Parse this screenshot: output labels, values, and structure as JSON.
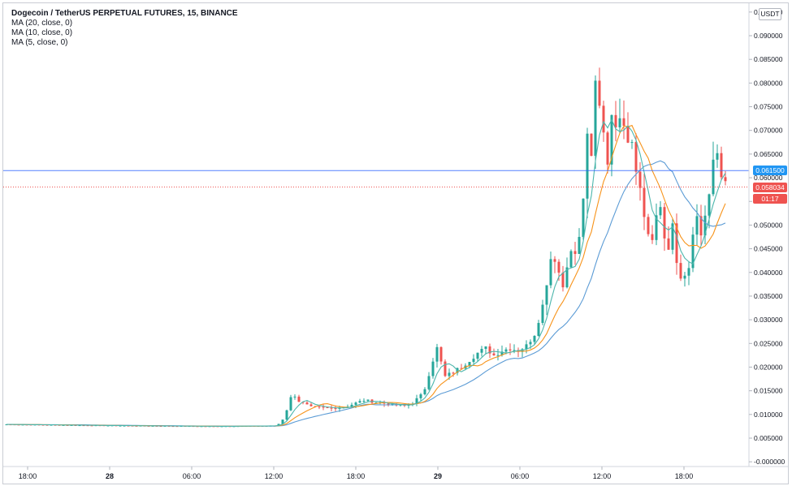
{
  "legend": {
    "title": "Dogecoin / TetherUS PERPETUAL FUTURES, 15, BINANCE",
    "studies": [
      "MA (20, close, 0)",
      "MA (10, close, 0)",
      "MA (5, close, 0)"
    ]
  },
  "currency_badge": "USDT",
  "price_tags": {
    "last_price": "0.061500",
    "mark_price": "0.058034",
    "countdown": "01:17"
  },
  "colors": {
    "up": "#26a69a",
    "down": "#ef5350",
    "ma20": "#5b9bd5",
    "ma10": "#f7931a",
    "ma5": "#4db6ac",
    "last_price_line": "#2962ff",
    "mark_price_line": "#ef5350"
  },
  "chart_data": {
    "type": "candlestick",
    "symbol": "Dogecoin / TetherUS PERPETUAL FUTURES",
    "interval": "15",
    "exchange": "BINANCE",
    "y_axis": {
      "range": [
        -0.001,
        0.096
      ],
      "ticks": [
        "0.095000",
        "0.090000",
        "0.085000",
        "0.080000",
        "0.075000",
        "0.070000",
        "0.065000",
        "0.060000",
        "0.055000",
        "0.050000",
        "0.045000",
        "0.040000",
        "0.035000",
        "0.030000",
        "0.025000",
        "0.020000",
        "0.015000",
        "0.010000",
        "0.005000",
        "-0.000000"
      ],
      "tick_values": [
        0.095,
        0.09,
        0.085,
        0.08,
        0.075,
        0.07,
        0.065,
        0.06,
        0.055,
        0.05,
        0.045,
        0.04,
        0.035,
        0.03,
        0.025,
        0.02,
        0.015,
        0.01,
        0.005,
        0.0
      ]
    },
    "x_axis": {
      "ticks": [
        "18:00",
        "28",
        "06:00",
        "12:00",
        "18:00",
        "29",
        "06:00",
        "12:00",
        "18:00"
      ],
      "bold_ticks": [
        "28",
        "29"
      ]
    },
    "anchors": [
      [
        0,
        0.0079
      ],
      [
        60,
        0.0077
      ],
      [
        100,
        0.0076
      ],
      [
        150,
        0.0075
      ],
      [
        198,
        0.0076
      ],
      [
        201,
        0.008
      ],
      [
        204,
        0.009
      ],
      [
        207,
        0.011
      ],
      [
        210,
        0.0135
      ],
      [
        213,
        0.014
      ],
      [
        216,
        0.0128
      ],
      [
        225,
        0.0115
      ],
      [
        240,
        0.0113
      ],
      [
        252,
        0.0118
      ],
      [
        264,
        0.013
      ],
      [
        276,
        0.0125
      ],
      [
        285,
        0.012
      ],
      [
        294,
        0.0118
      ],
      [
        300,
        0.0125
      ],
      [
        306,
        0.014
      ],
      [
        309,
        0.0155
      ],
      [
        312,
        0.0185
      ],
      [
        315,
        0.0215
      ],
      [
        318,
        0.024
      ],
      [
        321,
        0.021
      ],
      [
        324,
        0.018
      ],
      [
        330,
        0.019
      ],
      [
        336,
        0.02
      ],
      [
        342,
        0.0215
      ],
      [
        348,
        0.023
      ],
      [
        354,
        0.024
      ],
      [
        360,
        0.0225
      ],
      [
        366,
        0.0235
      ],
      [
        372,
        0.024
      ],
      [
        378,
        0.0235
      ],
      [
        384,
        0.0245
      ],
      [
        390,
        0.027
      ],
      [
        393,
        0.03
      ],
      [
        396,
        0.033
      ],
      [
        399,
        0.038
      ],
      [
        402,
        0.043
      ],
      [
        405,
        0.043
      ],
      [
        408,
        0.04
      ],
      [
        411,
        0.037
      ],
      [
        414,
        0.042
      ],
      [
        417,
        0.044
      ],
      [
        420,
        0.044
      ],
      [
        423,
        0.047
      ],
      [
        426,
        0.056
      ],
      [
        429,
        0.068
      ],
      [
        432,
        0.064
      ],
      [
        435,
        0.08
      ],
      [
        438,
        0.076
      ],
      [
        441,
        0.07
      ],
      [
        444,
        0.064
      ],
      [
        447,
        0.072
      ],
      [
        450,
        0.072
      ],
      [
        453,
        0.074
      ],
      [
        456,
        0.072
      ],
      [
        459,
        0.068
      ],
      [
        462,
        0.069
      ],
      [
        465,
        0.061
      ],
      [
        468,
        0.058
      ],
      [
        471,
        0.052
      ],
      [
        474,
        0.048
      ],
      [
        477,
        0.046
      ],
      [
        480,
        0.052
      ],
      [
        483,
        0.054
      ],
      [
        486,
        0.048
      ],
      [
        489,
        0.044
      ],
      [
        492,
        0.05
      ],
      [
        495,
        0.042
      ],
      [
        498,
        0.038
      ],
      [
        501,
        0.039
      ],
      [
        504,
        0.041
      ],
      [
        507,
        0.047
      ],
      [
        510,
        0.051
      ],
      [
        513,
        0.048
      ],
      [
        516,
        0.052
      ],
      [
        519,
        0.056
      ],
      [
        522,
        0.063
      ],
      [
        525,
        0.064
      ],
      [
        528,
        0.06
      ],
      [
        530,
        0.058
      ]
    ],
    "last_price": 0.0615,
    "mark_price": 0.058034,
    "moving_averages": [
      {
        "name": "MA (20, close, 0)",
        "period": 20
      },
      {
        "name": "MA (10, close, 0)",
        "period": 10
      },
      {
        "name": "MA (5, close, 0)",
        "period": 5
      }
    ],
    "grid": false
  }
}
